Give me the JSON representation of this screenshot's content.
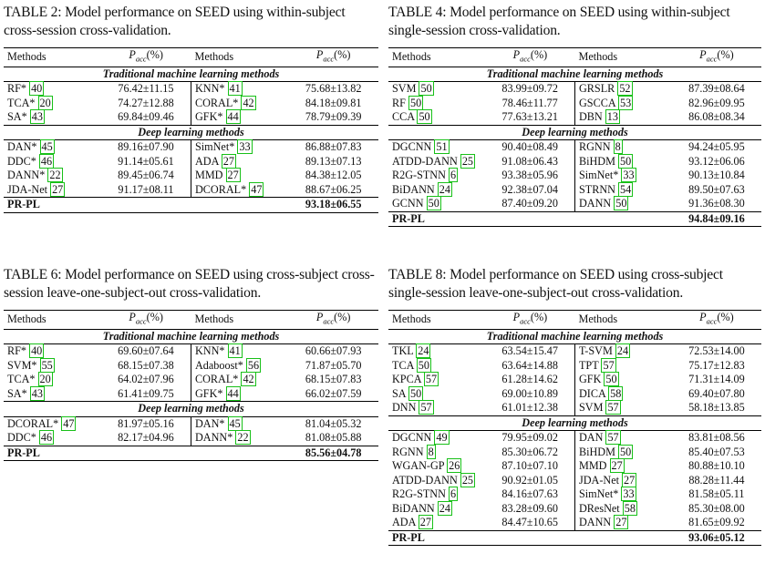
{
  "accent": {
    "citation_box": "#18c018"
  },
  "header_methods": "Methods",
  "header_pacc": "(%)",
  "section_trad": "Traditional machine learning methods",
  "section_deep": "Deep learning methods",
  "t2": {
    "caption": "TABLE 2: Model performance on SEED using within-subject cross-session cross-validation.",
    "trad": [
      [
        "RF*",
        "40",
        "76.42±11.15",
        "KNN*",
        "41",
        "75.68±13.82"
      ],
      [
        "TCA*",
        "20",
        "74.27±12.88",
        "CORAL*",
        "42",
        "84.18±09.81"
      ],
      [
        "SA*",
        "43",
        "69.84±09.46",
        "GFK*",
        "44",
        "78.79±09.39"
      ]
    ],
    "deep": [
      [
        "DAN*",
        "45",
        "89.16±07.90",
        "SimNet*",
        "33",
        "86.88±07.83"
      ],
      [
        "DDC*",
        "46",
        "91.14±05.61",
        "ADA",
        "27",
        "89.13±07.13"
      ],
      [
        "DANN*",
        "22",
        "89.45±06.74",
        "MMD",
        "27",
        "84.38±12.05"
      ],
      [
        "JDA-Net",
        "27",
        "91.17±08.11",
        "DCORAL*",
        "47",
        "88.67±06.25"
      ]
    ],
    "final": {
      "name": "PR-PL",
      "value": "93.18±06.55"
    }
  },
  "t4": {
    "caption": "TABLE 4: Model performance on SEED using within-subject single-session cross-validation.",
    "trad": [
      [
        "SVM",
        "50",
        "83.99±09.72",
        "GRSLR",
        "52",
        "87.39±08.64"
      ],
      [
        "RF",
        "50",
        "78.46±11.77",
        "GSCCA",
        "53",
        "82.96±09.95"
      ],
      [
        "CCA",
        "50",
        "77.63±13.21",
        "DBN",
        "13",
        "86.08±08.34"
      ]
    ],
    "deep": [
      [
        "DGCNN",
        "51",
        "90.40±08.49",
        "RGNN",
        "8",
        "94.24±05.95"
      ],
      [
        "ATDD-DANN",
        "25",
        "91.08±06.43",
        "BiHDM",
        "50",
        "93.12±06.06"
      ],
      [
        "R2G-STNN",
        "6",
        "93.38±05.96",
        "SimNet*",
        "33",
        "90.13±10.84"
      ],
      [
        "BiDANN",
        "24",
        "92.38±07.04",
        "STRNN",
        "54",
        "89.50±07.63"
      ],
      [
        "GCNN",
        "50",
        "87.40±09.20",
        "DANN",
        "50",
        "91.36±08.30"
      ]
    ],
    "final": {
      "name": "PR-PL",
      "value": "94.84±09.16"
    }
  },
  "t6": {
    "caption": "TABLE 6: Model performance on SEED using cross-subject cross-session leave-one-subject-out cross-validation.",
    "trad": [
      [
        "RF*",
        "40",
        "69.60±07.64",
        "KNN*",
        "41",
        "60.66±07.93"
      ],
      [
        "SVM*",
        "55",
        "68.15±07.38",
        "Adaboost*",
        "56",
        "71.87±05.70"
      ],
      [
        "TCA*",
        "20",
        "64.02±07.96",
        "CORAL*",
        "42",
        "68.15±07.83"
      ],
      [
        "SA*",
        "43",
        "61.41±09.75",
        "GFK*",
        "44",
        "66.02±07.59"
      ]
    ],
    "deep": [
      [
        "DCORAL*",
        "47",
        "81.97±05.16",
        "DAN*",
        "45",
        "81.04±05.32"
      ],
      [
        "DDC*",
        "46",
        "82.17±04.96",
        "DANN*",
        "22",
        "81.08±05.88"
      ]
    ],
    "final": {
      "name": "PR-PL",
      "value": "85.56±04.78"
    }
  },
  "t8": {
    "caption": "TABLE 8: Model performance on SEED using cross-subject single-session leave-one-subject-out cross-validation.",
    "trad": [
      [
        "TKL",
        "24",
        "63.54±15.47",
        "T-SVM",
        "24",
        "72.53±14.00"
      ],
      [
        "TCA",
        "50",
        "63.64±14.88",
        "TPT",
        "57",
        "75.17±12.83"
      ],
      [
        "KPCA",
        "57",
        "61.28±14.62",
        "GFK",
        "50",
        "71.31±14.09"
      ],
      [
        "SA",
        "50",
        "69.00±10.89",
        "DICA",
        "58",
        "69.40±07.80"
      ],
      [
        "DNN",
        "57",
        "61.01±12.38",
        "SVM",
        "57",
        "58.18±13.85"
      ]
    ],
    "deep": [
      [
        "DGCNN",
        "49",
        "79.95±09.02",
        "DAN",
        "57",
        "83.81±08.56"
      ],
      [
        "RGNN",
        "8",
        "85.30±06.72",
        "BiHDM",
        "50",
        "85.40±07.53"
      ],
      [
        "WGAN-GP",
        "26",
        "87.10±07.10",
        "MMD",
        "27",
        "80.88±10.10"
      ],
      [
        "ATDD-DANN",
        "25",
        "90.92±01.05",
        "JDA-Net",
        "27",
        "88.28±11.44"
      ],
      [
        "R2G-STNN",
        "6",
        "84.16±07.63",
        "SimNet*",
        "33",
        "81.58±05.11"
      ],
      [
        "BiDANN",
        "24",
        "83.28±09.60",
        "DResNet",
        "58",
        "85.30±08.00"
      ],
      [
        "ADA",
        "27",
        "84.47±10.65",
        "DANN",
        "27",
        "81.65±09.92"
      ]
    ],
    "final": {
      "name": "PR-PL",
      "value": "93.06±05.12"
    }
  }
}
